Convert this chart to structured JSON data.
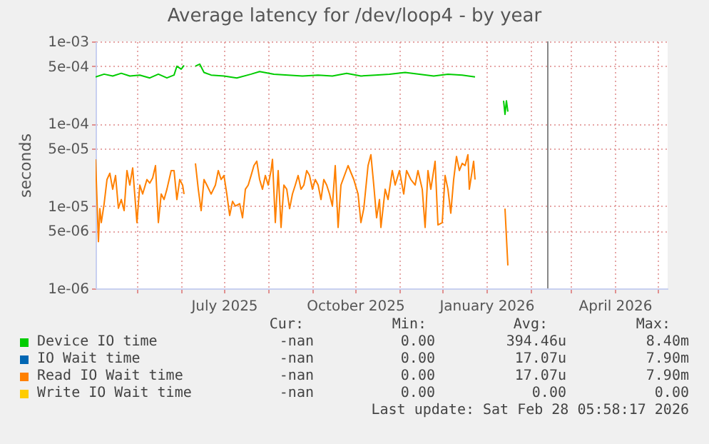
{
  "chart_data": {
    "type": "line",
    "title": "Average latency for /dev/loop4 - by year",
    "ylabel": "seconds",
    "log": true,
    "grid": true,
    "legend": "bottom",
    "xlim": [
      "2025-04-02",
      "2026-05-08"
    ],
    "xticks": [
      {
        "value": "2025-05-01",
        "label": null
      },
      {
        "value": "2025-06-01",
        "label": null
      },
      {
        "value": "2025-07-01",
        "label": "July 2025"
      },
      {
        "value": "2025-08-01",
        "label": null
      },
      {
        "value": "2025-09-01",
        "label": null
      },
      {
        "value": "2025-10-01",
        "label": "October 2025"
      },
      {
        "value": "2025-11-01",
        "label": null
      },
      {
        "value": "2025-12-01",
        "label": null
      },
      {
        "value": "2026-01-01",
        "label": "January 2026"
      },
      {
        "value": "2026-02-01",
        "label": null
      },
      {
        "value": "2026-03-01",
        "label": null
      },
      {
        "value": "2026-04-01",
        "label": "April 2026"
      },
      {
        "value": "2026-05-01",
        "label": null
      }
    ],
    "ylim": [
      1e-06,
      0.001
    ],
    "yticks": [
      {
        "value": 1e-06,
        "label": "1e-06"
      },
      {
        "value": 5e-06,
        "label": "5e-06"
      },
      {
        "value": 1e-05,
        "label": "1e-05"
      },
      {
        "value": 5e-05,
        "label": "5e-05"
      },
      {
        "value": 0.0001,
        "label": "1e-04"
      },
      {
        "value": 0.0005,
        "label": "5e-04"
      },
      {
        "value": 0.001,
        "label": "1e-03"
      }
    ],
    "ref_lines": [
      {
        "axis": "x",
        "value": "2026-02-13",
        "color": "#888888"
      }
    ],
    "series": [
      {
        "name": "Device IO time",
        "color": "#00cc00",
        "x": [
          "2025-04-02",
          "2025-04-08",
          "2025-04-14",
          "2025-04-20",
          "2025-04-26",
          "2025-05-03",
          "2025-05-10",
          "2025-05-16",
          "2025-05-22",
          "2025-05-27",
          "2025-05-29",
          "2025-06-01",
          "2025-06-03",
          "2025-06-07",
          "2025-06-11",
          "2025-06-14",
          "2025-06-17",
          "2025-06-22",
          "2025-07-01",
          "2025-07-10",
          "2025-07-20",
          "2025-07-26",
          "2025-08-05",
          "2025-08-15",
          "2025-08-25",
          "2025-09-05",
          "2025-09-15",
          "2025-09-25",
          "2025-10-05",
          "2025-10-15",
          "2025-10-25",
          "2025-11-05",
          "2025-11-15",
          "2025-11-25",
          "2025-12-05",
          "2025-12-15",
          "2025-12-24",
          "2026-01-01",
          "2026-01-13",
          "2026-01-14",
          "2026-01-15",
          "2026-01-16"
        ],
        "values": [
          0.00037,
          0.0004,
          0.00038,
          0.00041,
          0.00038,
          0.00039,
          0.00036,
          0.0004,
          0.00036,
          0.00039,
          0.0005,
          0.00046,
          0.00051,
          null,
          0.0005,
          0.00053,
          0.00042,
          0.00039,
          0.00038,
          0.00036,
          0.0004,
          0.00043,
          0.0004,
          0.00039,
          0.00038,
          0.00039,
          0.00038,
          0.00041,
          0.00038,
          0.00039,
          0.0004,
          0.00042,
          0.0004,
          0.00038,
          0.0004,
          0.00039,
          0.00037,
          null,
          0.00019,
          0.00013,
          0.00019,
          0.00014
        ]
      },
      {
        "name": "IO Wait time",
        "color": "#0066b3"
      },
      {
        "name": "Read IO Wait time",
        "color": "#ff8000",
        "x": [
          "2025-04-02",
          "2025-04-04",
          "2025-04-05",
          "2025-04-06",
          "2025-04-08",
          "2025-04-10",
          "2025-04-12",
          "2025-04-14",
          "2025-04-16",
          "2025-04-18",
          "2025-04-20",
          "2025-04-22",
          "2025-04-24",
          "2025-04-26",
          "2025-04-28",
          "2025-05-01",
          "2025-05-03",
          "2025-05-05",
          "2025-05-08",
          "2025-05-10",
          "2025-05-12",
          "2025-05-14",
          "2025-05-16",
          "2025-05-18",
          "2025-05-20",
          "2025-05-22",
          "2025-05-25",
          "2025-05-27",
          "2025-05-29",
          "2025-05-31",
          "2025-06-02",
          "2025-06-03",
          "2025-06-07",
          "2025-06-11",
          "2025-06-13",
          "2025-06-15",
          "2025-06-17",
          "2025-06-19",
          "2025-06-22",
          "2025-06-25",
          "2025-06-27",
          "2025-06-29",
          "2025-07-01",
          "2025-07-03",
          "2025-07-05",
          "2025-07-07",
          "2025-07-09",
          "2025-07-12",
          "2025-07-14",
          "2025-07-16",
          "2025-07-18",
          "2025-07-20",
          "2025-07-22",
          "2025-07-24",
          "2025-07-26",
          "2025-07-28",
          "2025-07-30",
          "2025-08-01",
          "2025-08-03",
          "2025-08-04",
          "2025-08-06",
          "2025-08-08",
          "2025-08-10",
          "2025-08-12",
          "2025-08-14",
          "2025-08-16",
          "2025-08-18",
          "2025-08-20",
          "2025-08-22",
          "2025-08-24",
          "2025-08-26",
          "2025-08-28",
          "2025-08-30",
          "2025-09-01",
          "2025-09-03",
          "2025-09-05",
          "2025-09-07",
          "2025-09-09",
          "2025-09-11",
          "2025-09-13",
          "2025-09-15",
          "2025-09-17",
          "2025-09-19",
          "2025-09-21",
          "2025-09-26",
          "2025-09-30",
          "2025-10-03",
          "2025-10-05",
          "2025-10-07",
          "2025-10-10",
          "2025-10-12",
          "2025-10-14",
          "2025-10-16",
          "2025-10-18",
          "2025-10-19",
          "2025-10-22",
          "2025-10-24",
          "2025-10-27",
          "2025-10-29",
          "2025-11-01",
          "2025-11-04",
          "2025-11-06",
          "2025-11-09",
          "2025-11-12",
          "2025-11-14",
          "2025-11-17",
          "2025-11-19",
          "2025-11-21",
          "2025-11-23",
          "2025-11-26",
          "2025-11-28",
          "2025-12-01",
          "2025-12-03",
          "2025-12-05",
          "2025-12-07",
          "2025-12-09",
          "2025-12-11",
          "2025-12-13",
          "2025-12-15",
          "2025-12-17",
          "2025-12-19",
          "2025-12-20",
          "2025-12-23",
          "2025-12-24",
          "2026-01-01",
          "2026-01-14",
          "2026-01-15",
          "2026-01-16"
        ],
        "values": [
          3.7e-05,
          3.7e-06,
          9.3e-06,
          6.3e-06,
          1.07e-05,
          2.1e-05,
          2.5e-05,
          1.6e-05,
          2.35e-05,
          9.4e-06,
          1.2e-05,
          8.8e-06,
          2.7e-05,
          1.8e-05,
          2.9e-05,
          6.3e-06,
          1.8e-05,
          1.4e-05,
          2.1e-05,
          1.9e-05,
          2.2e-05,
          3.1e-05,
          6.3e-06,
          1.4e-05,
          1.2e-05,
          1.6e-05,
          2.7e-05,
          2.7e-05,
          1.2e-05,
          2.1e-05,
          1.8e-05,
          1.4e-05,
          null,
          3.3e-05,
          1.6e-05,
          8.8e-06,
          2.1e-05,
          1.8e-05,
          1.4e-05,
          1.8e-05,
          2.7e-05,
          2.1e-05,
          2.35e-05,
          1.4e-05,
          7.7e-06,
          1.14e-05,
          1e-05,
          1.07e-05,
          7.2e-06,
          1.6e-05,
          1.8e-05,
          2.35e-05,
          3.1e-05,
          3.5e-05,
          2.1e-05,
          1.6e-05,
          2.35e-05,
          1.8e-05,
          2.7e-05,
          3.7e-05,
          6.3e-06,
          2.7e-05,
          5.5e-06,
          1.8e-05,
          1.6e-05,
          9.3e-06,
          1.4e-05,
          1.8e-05,
          2.35e-05,
          1.6e-05,
          1.8e-05,
          2.7e-05,
          2.35e-05,
          1.6e-05,
          2.1e-05,
          1.8e-05,
          1.2e-05,
          2.1e-05,
          1.8e-05,
          1.4e-05,
          1e-05,
          3.1e-05,
          5.5e-06,
          1.8e-05,
          3.1e-05,
          2.1e-05,
          1.4e-05,
          6.3e-06,
          9.3e-06,
          3.1e-05,
          4.2e-05,
          1.8e-05,
          7.2e-06,
          1.2e-05,
          5.5e-06,
          1.6e-05,
          1.2e-05,
          2.7e-05,
          1.8e-05,
          2.7e-05,
          1.4e-05,
          2.7e-05,
          2.1e-05,
          1.8e-05,
          2.7e-05,
          1.6e-05,
          5.5e-06,
          2.7e-05,
          1.6e-05,
          3.5e-05,
          5.9e-06,
          6.3e-06,
          2.35e-05,
          1.6e-05,
          8.2e-06,
          2.1e-05,
          4e-05,
          2.7e-05,
          3.3e-05,
          3.1e-05,
          4.2e-05,
          1.6e-05,
          3.5e-05,
          2.1e-05,
          null,
          9.3e-06,
          4.2e-06,
          1.9e-06
        ]
      },
      {
        "name": "Write IO Wait time",
        "color": "#ffcc00"
      }
    ],
    "annotations": [
      "Cur:",
      "Min:",
      "Avg:",
      "Max:",
      "-nan",
      "0.00",
      "394.46u",
      "8.40m",
      "-nan",
      "0.00",
      "17.07u",
      "7.90m",
      "-nan",
      "0.00",
      "17.07u",
      "7.90m",
      "-nan",
      "0.00",
      "0.00",
      "0.00",
      "Last update: Sat Feb 28 05:58:17 2026"
    ]
  }
}
